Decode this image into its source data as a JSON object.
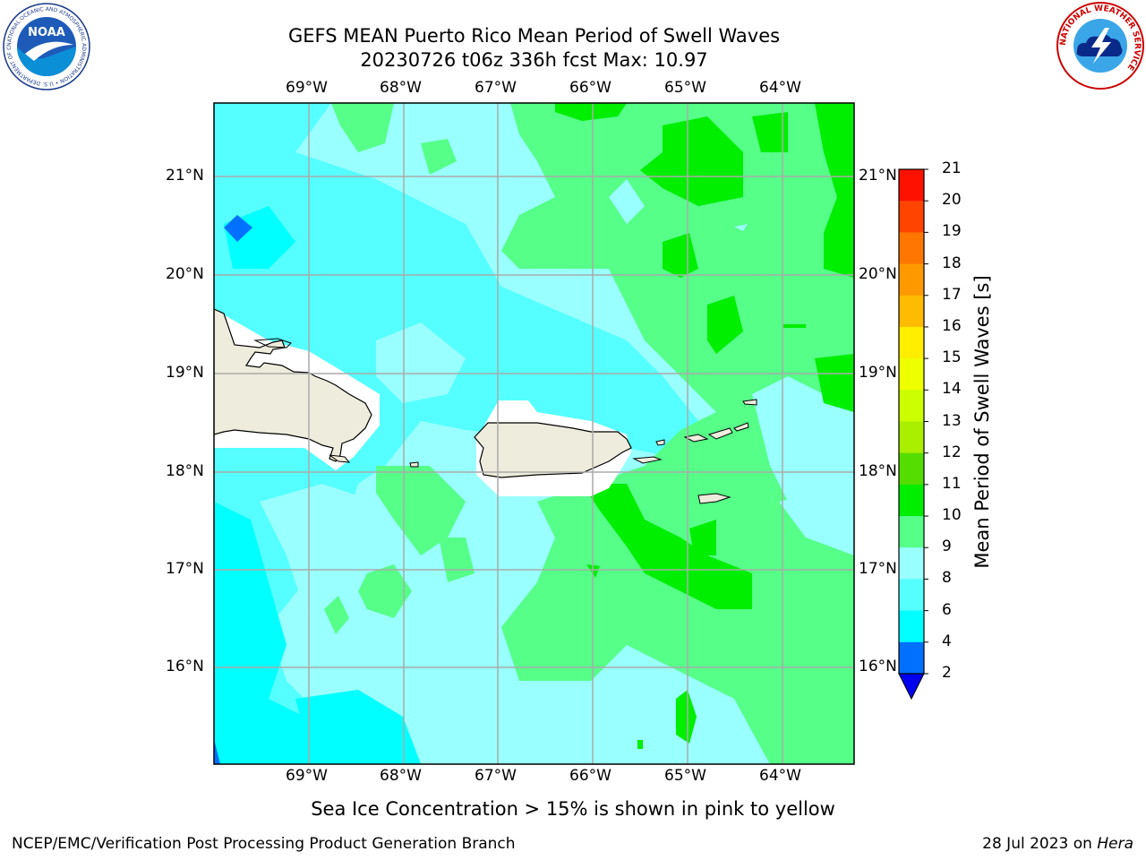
{
  "title": {
    "line1": "GEFS MEAN Puerto Rico Mean Period of Swell Waves",
    "line2": "20230726 t06z 336h fcst   Max: 10.97"
  },
  "map": {
    "lon_labels": [
      "69°W",
      "68°W",
      "67°W",
      "66°W",
      "65°W",
      "64°W"
    ],
    "lat_labels": [
      "21°N",
      "20°N",
      "19°N",
      "18°N",
      "17°N",
      "16°N"
    ],
    "land_color": "#eeecdc",
    "regions": [
      "Hispaniola",
      "Puerto Rico",
      "Virgin Islands"
    ]
  },
  "colorbar": {
    "title": "Mean Period of Swell Waves [s]",
    "ticks": [
      "2",
      "4",
      "6",
      "8",
      "9",
      "10",
      "11",
      "12",
      "13",
      "14",
      "15",
      "16",
      "17",
      "18",
      "19",
      "20",
      "21"
    ],
    "levels": [
      2,
      4,
      6,
      8,
      9,
      10,
      11,
      12,
      13,
      14,
      15,
      16,
      17,
      18,
      19,
      20,
      21
    ],
    "colors": [
      "#0000ee",
      "#0070ff",
      "#00ffff",
      "#55ffff",
      "#99ffff",
      "#55ff88",
      "#00ee00",
      "#55dd00",
      "#aaee00",
      "#ccff00",
      "#eeff00",
      "#ffee00",
      "#ffbb00",
      "#ff9900",
      "#ff7700",
      "#ff4400",
      "#ff1100",
      "#ff0000"
    ]
  },
  "note": "Sea Ice Concentration > 15% is shown in pink to yellow",
  "footer": {
    "left": "NCEP/EMC/Verification Post Processing Product Generation Branch",
    "right_prefix": "28 Jul 2023 on ",
    "right_host": "Hera"
  },
  "logos": {
    "noaa": "NOAA",
    "noaa_ring": "NATIONAL OCEANIC AND ATMOSPHERIC ADMINISTRATION • U.S. DEPARTMENT OF COMMERCE",
    "nws_ring": "NATIONAL WEATHER SERVICE"
  }
}
